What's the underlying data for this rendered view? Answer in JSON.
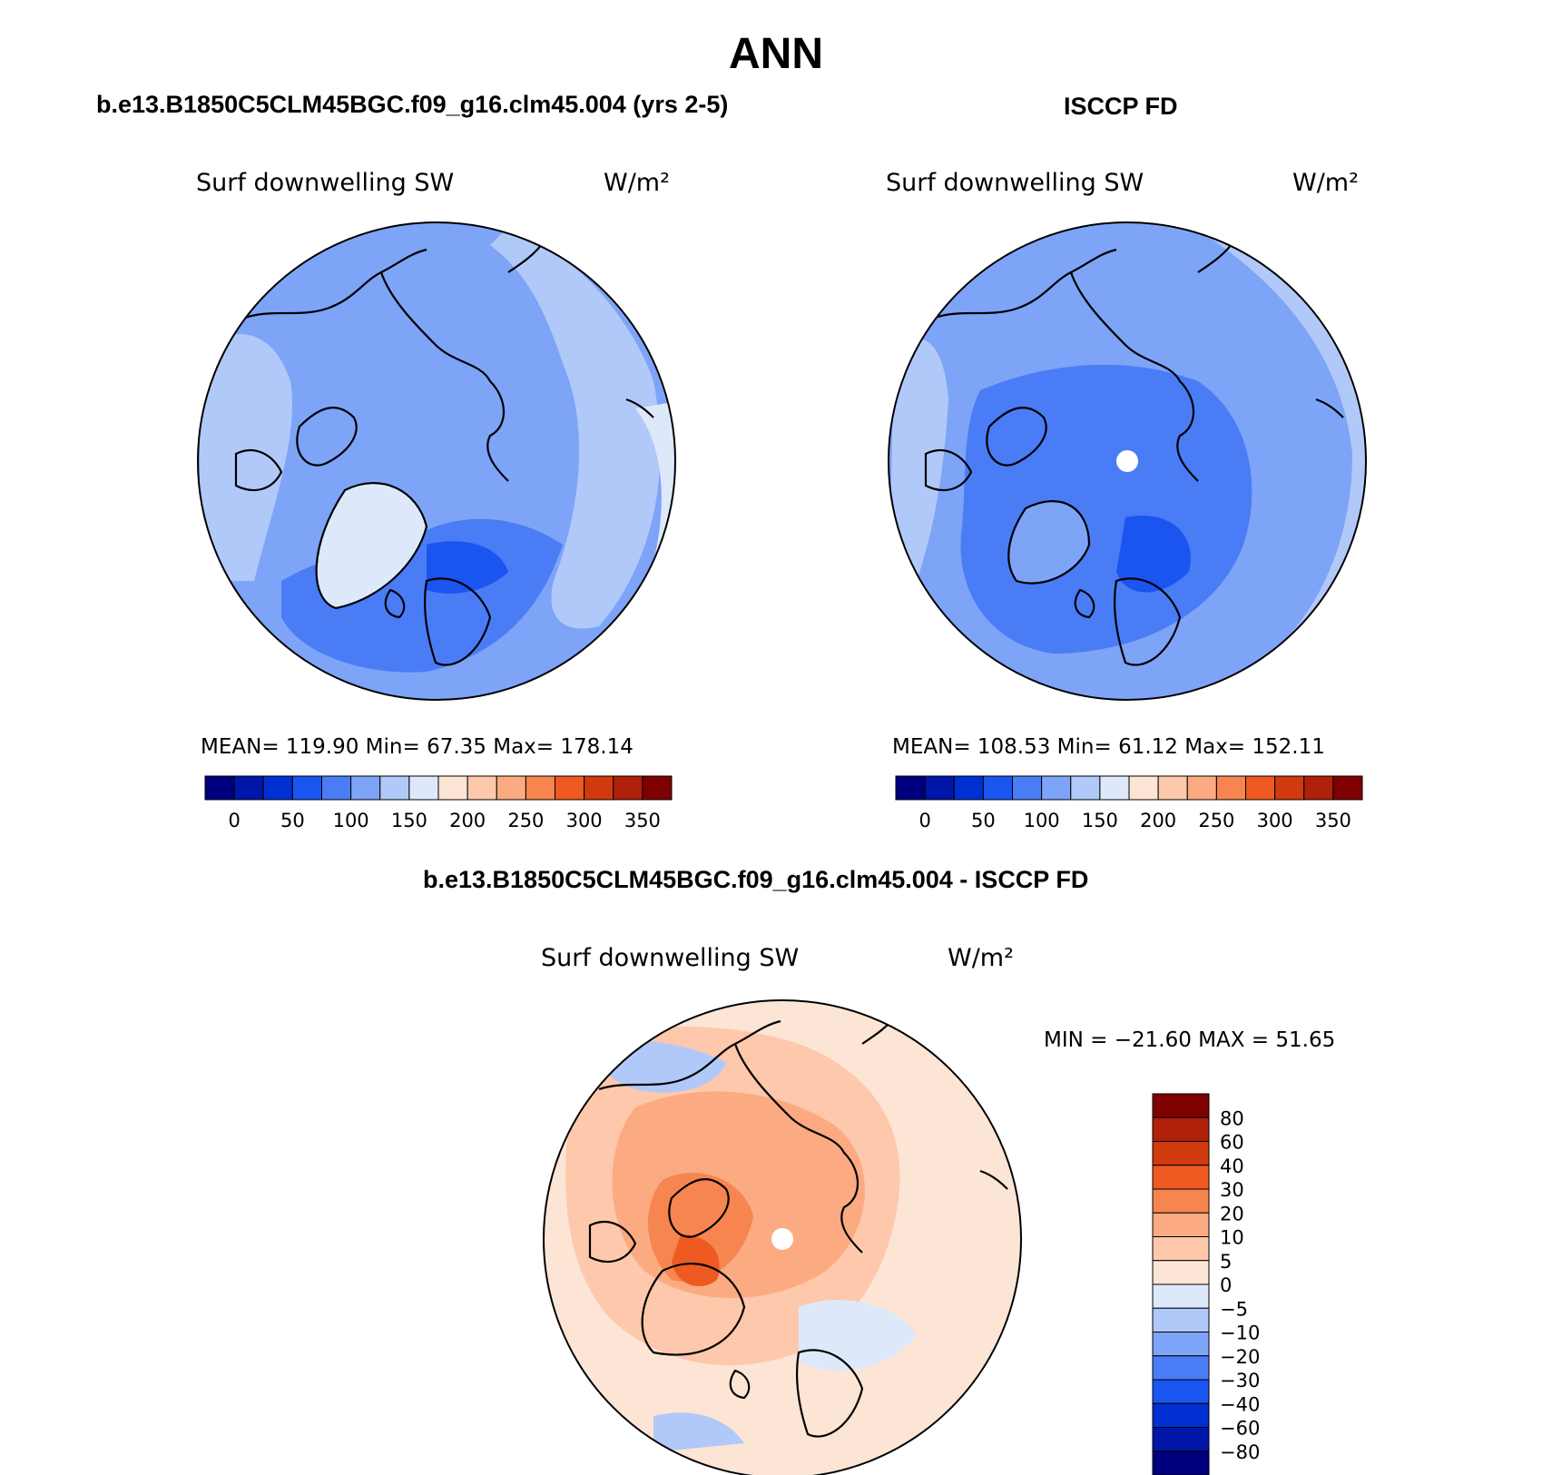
{
  "figure": {
    "title": "ANN"
  },
  "panels": [
    {
      "title": "b.e13.B1850C5CLM45BGC.f09_g16.clm45.004 (yrs 2-5)",
      "variable": "Surf downwelling SW",
      "units": "W/m²",
      "stats": {
        "mean": "119.90",
        "min": "67.35",
        "max": "178.14"
      },
      "stats_text": "MEAN=  119.90   Min=   67.35   Max=  178.14",
      "colorbar": {
        "ticks": [
          "0",
          "50",
          "100",
          "150",
          "200",
          "250",
          "300",
          "350"
        ],
        "colors": [
          "#00007f",
          "#0016a9",
          "#0030d2",
          "#1a55f0",
          "#4a7cf5",
          "#7ea4f7",
          "#b1c9f9",
          "#dde9fb",
          "#fce5d5",
          "#fdc8ac",
          "#fbaa81",
          "#f7854f",
          "#ee5a22",
          "#d13a0f",
          "#b0200a",
          "#7f0000"
        ]
      },
      "map_colors": {
        "base": "#7ea4f7",
        "light": "#b1c9f9",
        "lighter": "#dde9fb",
        "dark": "#4a7cf5",
        "darker": "#1a55f0"
      }
    },
    {
      "title": "ISCCP FD",
      "variable": "Surf downwelling SW",
      "units": "W/m²",
      "stats": {
        "mean": "108.53",
        "min": "61.12",
        "max": "152.11"
      },
      "stats_text": "MEAN=  108.53   Min=   61.12   Max=  152.11",
      "colorbar": {
        "ticks": [
          "0",
          "50",
          "100",
          "150",
          "200",
          "250",
          "300",
          "350"
        ],
        "colors": [
          "#00007f",
          "#0016a9",
          "#0030d2",
          "#1a55f0",
          "#4a7cf5",
          "#7ea4f7",
          "#b1c9f9",
          "#dde9fb",
          "#fce5d5",
          "#fdc8ac",
          "#fbaa81",
          "#f7854f",
          "#ee5a22",
          "#d13a0f",
          "#b0200a",
          "#7f0000"
        ]
      },
      "map_colors": {
        "base": "#7ea4f7",
        "light": "#b1c9f9",
        "dark": "#4a7cf5",
        "darker": "#1a55f0"
      }
    },
    {
      "title": "b.e13.B1850C5CLM45BGC.f09_g16.clm45.004 - ISCCP FD",
      "variable": "Surf downwelling SW",
      "units": "W/m²",
      "stats": {
        "min": "-21.60",
        "max": "51.65"
      },
      "stats_text": "MIN = −21.60 MAX =   51.65",
      "colorbar": {
        "ticks": [
          "80",
          "60",
          "40",
          "30",
          "20",
          "10",
          "5",
          "0",
          "−5",
          "−10",
          "−20",
          "−30",
          "−40",
          "−60",
          "−80"
        ],
        "colors": [
          "#7f0000",
          "#b0200a",
          "#d13a0f",
          "#ee5a22",
          "#f7854f",
          "#fbaa81",
          "#fdc8ac",
          "#fce5d5",
          "#dde9fb",
          "#b1c9f9",
          "#7ea4f7",
          "#4a7cf5",
          "#1a55f0",
          "#0030d2",
          "#0016a9",
          "#00007f"
        ]
      },
      "map_colors": {
        "base": "#fbaa81",
        "light": "#fdc8ac",
        "lighter": "#fce5d5",
        "dark": "#f7854f",
        "darker": "#ee5a22",
        "blue": "#b1c9f9",
        "blue2": "#dde9fb"
      }
    }
  ]
}
